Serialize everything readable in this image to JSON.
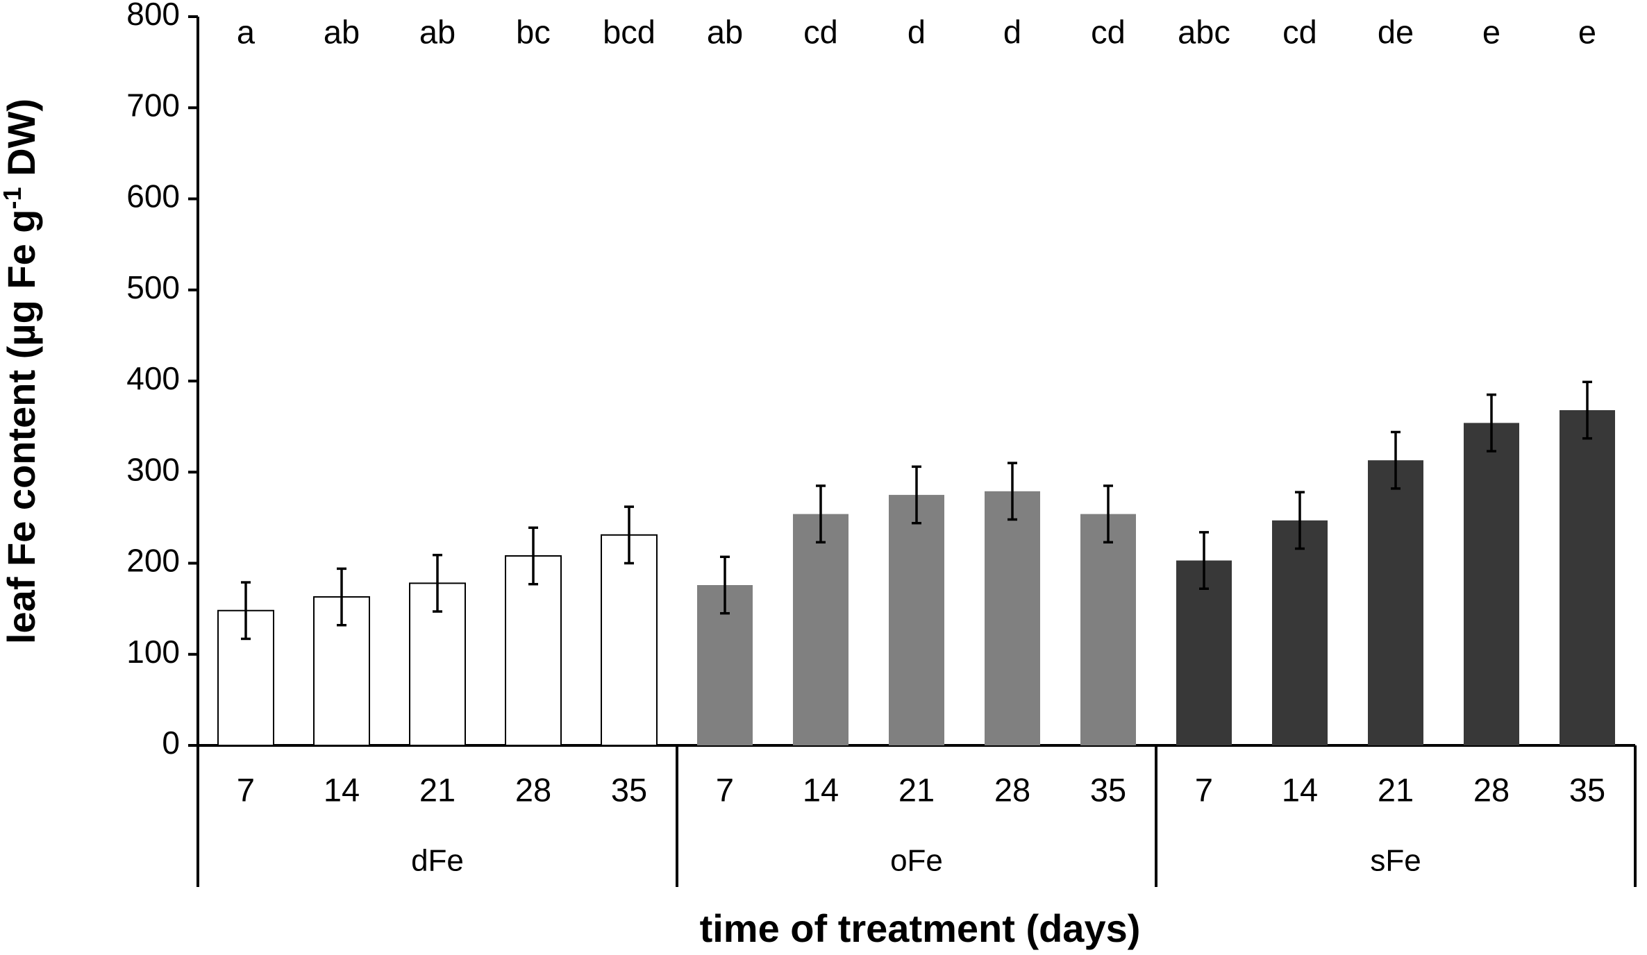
{
  "chart_data": {
    "type": "bar",
    "title": "",
    "ylabel_parts": {
      "main": "leaf Fe content (µg Fe g",
      "sup": "-1",
      "end": " DW)"
    },
    "xlabel": "time of treatment (days)",
    "ylim": [
      0,
      800
    ],
    "yticks": [
      "0",
      "100",
      "200",
      "300",
      "400",
      "500",
      "600",
      "700",
      "800"
    ],
    "ytick_values": [
      0,
      100,
      200,
      300,
      400,
      500,
      600,
      700,
      800
    ],
    "colors": {
      "dFe": "#ffffff",
      "oFe": "#808080",
      "sFe": "#383838",
      "outline": "#000000"
    },
    "groups": [
      {
        "name": "dFe",
        "categories": [
          "7",
          "14",
          "21",
          "28",
          "35"
        ],
        "values": [
          148,
          163,
          178,
          208,
          231
        ],
        "errors": [
          31,
          31,
          31,
          31,
          31
        ],
        "letters": [
          "a",
          "ab",
          "ab",
          "bc",
          "bcd"
        ]
      },
      {
        "name": "oFe",
        "categories": [
          "7",
          "14",
          "21",
          "28",
          "35"
        ],
        "values": [
          176,
          254,
          275,
          279,
          254
        ],
        "errors": [
          31,
          31,
          31,
          31,
          31
        ],
        "letters": [
          "ab",
          "cd",
          "d",
          "d",
          "cd"
        ]
      },
      {
        "name": "sFe",
        "categories": [
          "7",
          "14",
          "21",
          "28",
          "35"
        ],
        "values": [
          203,
          247,
          313,
          354,
          368
        ],
        "errors": [
          31,
          31,
          31,
          31,
          31
        ],
        "letters": [
          "abc",
          "cd",
          "de",
          "e",
          "e"
        ]
      }
    ]
  }
}
